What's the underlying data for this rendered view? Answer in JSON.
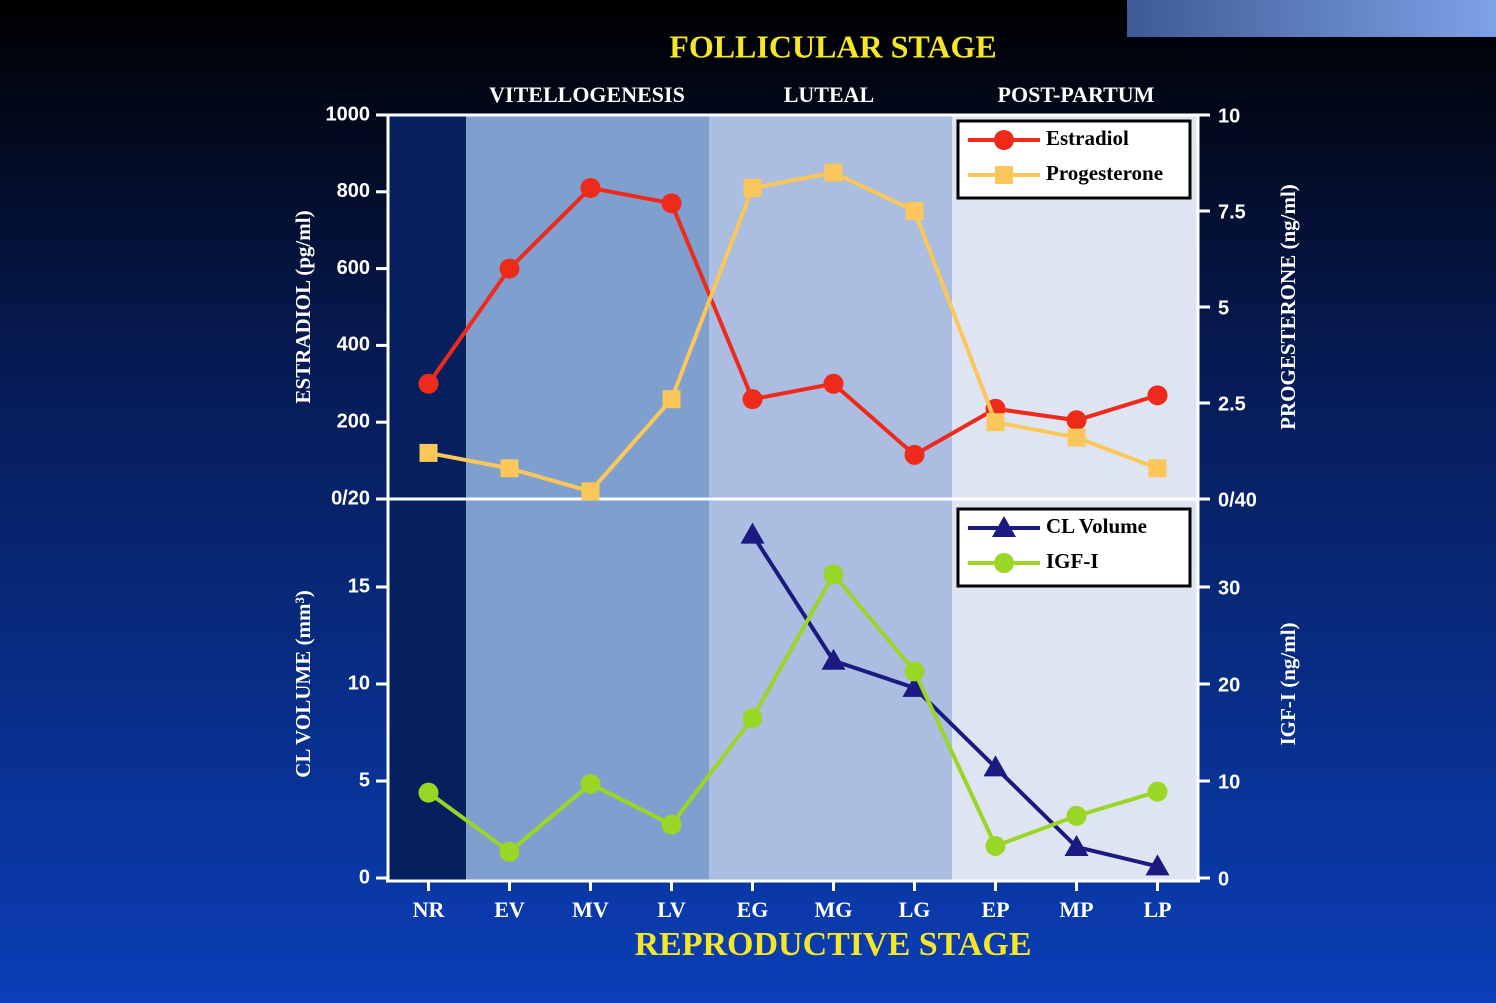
{
  "title": "FOLLICULAR STAGE",
  "x_label": "REPRODUCTIVE STAGE",
  "phases": [
    {
      "label": "VITELLOGENESIS"
    },
    {
      "label": "LUTEAL"
    },
    {
      "label": "POST-PARTUM"
    }
  ],
  "chart_data": [
    {
      "type": "line",
      "ylabel": "ESTRADIOL (pg/ml)",
      "y2label": "PROGESTERONE (ng/ml)",
      "ylim": [
        0,
        1000
      ],
      "yticks": [
        {
          "value": 0,
          "label": "0/20"
        },
        200,
        400,
        600,
        800,
        1000
      ],
      "y2lim": [
        0,
        10
      ],
      "y2ticks": [
        {
          "value": 0,
          "label": "0/40"
        },
        2.5,
        5,
        7.5,
        10
      ],
      "series": [
        {
          "name": "Estradiol",
          "color": "#ee2a1a",
          "marker": "circle",
          "values": [
            300,
            600,
            810,
            770,
            260,
            300,
            115,
            235,
            205,
            270
          ]
        },
        {
          "name": "Progesterone",
          "color": "#fbc75a",
          "marker": "square",
          "axis": "y2",
          "values": [
            1.2,
            0.8,
            0.2,
            2.6,
            8.1,
            8.5,
            7.5,
            2.0,
            1.6,
            0.8
          ]
        }
      ]
    },
    {
      "type": "line",
      "categories": [
        "NR",
        "EV",
        "MV",
        "LV",
        "EG",
        "MG",
        "LG",
        "EP",
        "MP",
        "LP"
      ],
      "ylabel": "CL VOLUME (mm³)",
      "y2label": "IGF-I (ng/ml)",
      "ylim": [
        0,
        20
      ],
      "yticks": [
        0,
        5,
        10,
        15
      ],
      "y2lim": [
        0,
        40
      ],
      "y2ticks": [
        0,
        10,
        20,
        30
      ],
      "series": [
        {
          "name": "CL Volume",
          "color": "#1a1a80",
          "marker": "triangle",
          "values": [
            null,
            null,
            null,
            null,
            17.7,
            11.2,
            9.8,
            5.7,
            1.6,
            0.6
          ]
        },
        {
          "name": "IGF-I",
          "color": "#9ad626",
          "marker": "circle",
          "axis": "y2",
          "values": [
            8.8,
            2.7,
            9.7,
            5.5,
            16.5,
            31.3,
            21.3,
            3.3,
            6.4,
            8.9
          ]
        }
      ]
    }
  ]
}
